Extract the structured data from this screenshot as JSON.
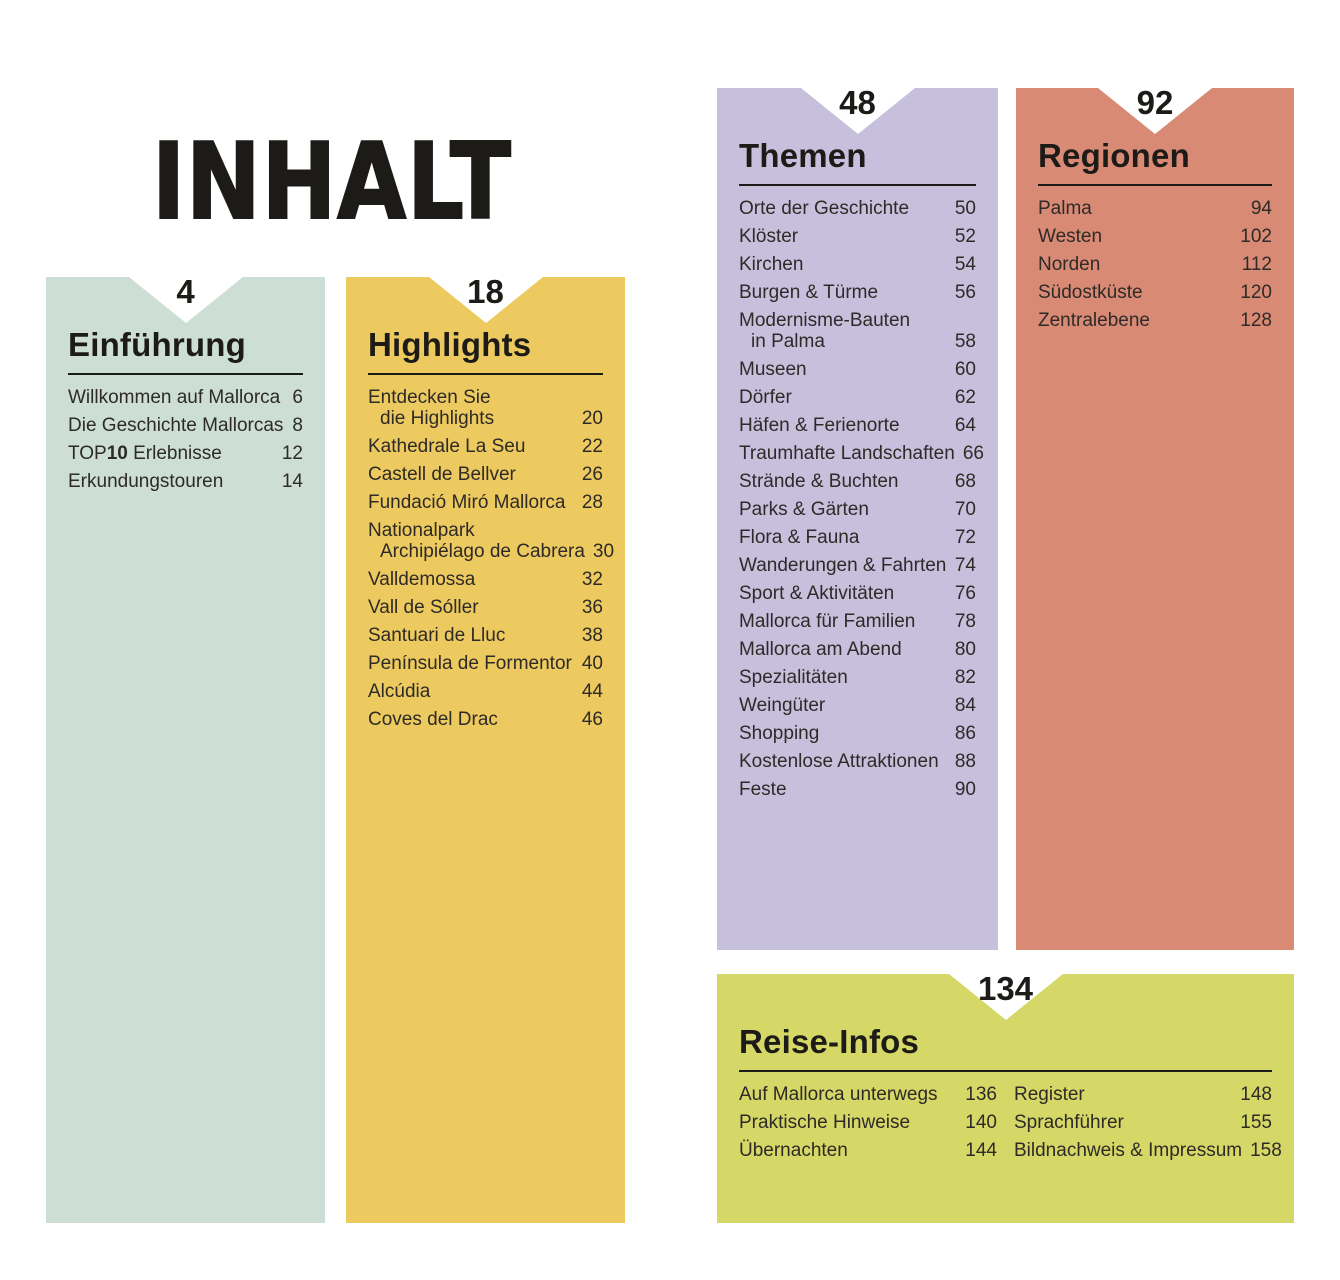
{
  "title": "INHALT",
  "colors": {
    "ink": "#1d1b18",
    "entry_ink": "#2d2a27",
    "page_background": "#ffffff"
  },
  "panels": [
    {
      "key": "einfuehrung",
      "number": "4",
      "heading": "Einführung",
      "bg": "#cddfd4",
      "entries": [
        {
          "label": "Willkommen auf Mallorca",
          "page": "6"
        },
        {
          "label": "Die Geschichte Mallorcas",
          "page": "8"
        },
        {
          "parts": [
            {
              "text": "TOP"
            },
            {
              "text": "10",
              "bold": true
            },
            {
              "text": " Erlebnisse"
            }
          ],
          "page": "12"
        },
        {
          "label": "Erkundungstouren",
          "page": "14"
        }
      ]
    },
    {
      "key": "highlights",
      "number": "18",
      "heading": "Highlights",
      "bg": "#edca5f",
      "entries": [
        {
          "lines": [
            "Entdecken Sie",
            "die Highlights"
          ],
          "page": "20"
        },
        {
          "label": "Kathedrale La Seu",
          "page": "22"
        },
        {
          "label": "Castell de Bellver",
          "page": "26"
        },
        {
          "label": "Fundació Miró Mallorca",
          "page": "28"
        },
        {
          "lines": [
            "Nationalpark",
            "Archipiélago de Cabrera"
          ],
          "page": "30"
        },
        {
          "label": "Valldemossa",
          "page": "32"
        },
        {
          "label": "Vall de Sóller",
          "page": "36"
        },
        {
          "label": "Santuari de Lluc",
          "page": "38"
        },
        {
          "label": "Península de Formentor",
          "page": "40"
        },
        {
          "label": "Alcúdia",
          "page": "44"
        },
        {
          "label": "Coves del Drac",
          "page": "46"
        }
      ]
    },
    {
      "key": "themen",
      "number": "48",
      "heading": "Themen",
      "bg": "#c6c0dd",
      "entries": [
        {
          "label": "Orte der Geschichte",
          "page": "50"
        },
        {
          "label": "Klöster",
          "page": "52"
        },
        {
          "label": "Kirchen",
          "page": "54"
        },
        {
          "label": "Burgen & Türme",
          "page": "56"
        },
        {
          "lines": [
            "Modernisme-Bauten",
            "in Palma"
          ],
          "page": "58"
        },
        {
          "label": "Museen",
          "page": "60"
        },
        {
          "label": "Dörfer",
          "page": "62"
        },
        {
          "label": "Häfen & Ferienorte",
          "page": "64"
        },
        {
          "label": "Traumhafte Landschaften",
          "page": "66"
        },
        {
          "label": "Strände & Buchten",
          "page": "68"
        },
        {
          "label": "Parks & Gärten",
          "page": "70"
        },
        {
          "label": "Flora & Fauna",
          "page": "72"
        },
        {
          "label": "Wanderungen & Fahrten",
          "page": "74"
        },
        {
          "label": "Sport & Aktivitäten",
          "page": "76"
        },
        {
          "label": "Mallorca für Familien",
          "page": "78"
        },
        {
          "label": "Mallorca am Abend",
          "page": "80"
        },
        {
          "label": "Spezialitäten",
          "page": "82"
        },
        {
          "label": "Weingüter",
          "page": "84"
        },
        {
          "label": "Shopping",
          "page": "86"
        },
        {
          "label": "Kostenlose Attraktionen",
          "page": "88"
        },
        {
          "label": "Feste",
          "page": "90"
        }
      ]
    },
    {
      "key": "regionen",
      "number": "92",
      "heading": "Regionen",
      "bg": "#d98a75",
      "entries": [
        {
          "label": "Palma",
          "page": "94"
        },
        {
          "label": "Westen",
          "page": "102"
        },
        {
          "label": "Norden",
          "page": "112"
        },
        {
          "label": "Südostküste",
          "page": "120"
        },
        {
          "label": "Zentralebene",
          "page": "128"
        }
      ]
    },
    {
      "key": "reise-infos",
      "number": "134",
      "heading": "Reise-Infos",
      "bg": "#d5d766",
      "columns": [
        [
          {
            "label": "Auf Mallorca unterwegs",
            "page": "136"
          },
          {
            "label": "Praktische Hinweise",
            "page": "140"
          },
          {
            "label": "Übernachten",
            "page": "144"
          }
        ],
        [
          {
            "label": "Register",
            "page": "148"
          },
          {
            "label": "Sprachführer",
            "page": "155"
          },
          {
            "label": "Bildnachweis & Impressum",
            "page": "158"
          }
        ]
      ]
    }
  ]
}
